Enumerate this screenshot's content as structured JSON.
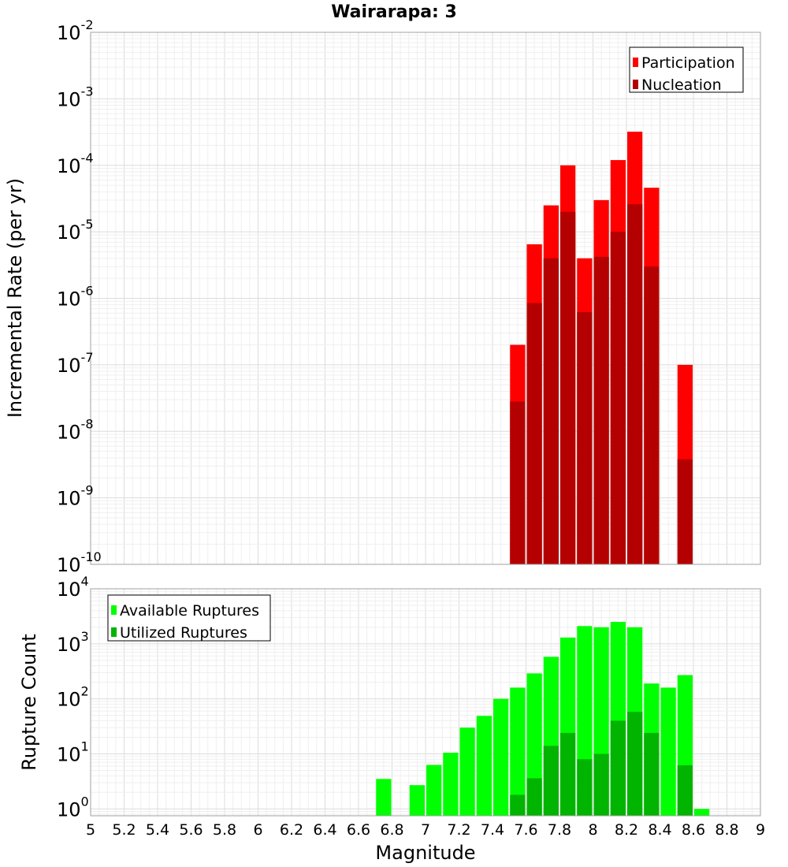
{
  "chart_data": [
    {
      "type": "bar",
      "panel": "top",
      "title": "Wairarapa: 3",
      "ylabel": "Incremental Rate (per yr)",
      "yscale": "log",
      "ylim": [
        1e-10,
        0.01
      ],
      "xlim": [
        5,
        9
      ],
      "bin_width": 0.1,
      "grid": true,
      "legend_position": "top-right",
      "y_ticks": [
        {
          "base": "10",
          "exp": "-10",
          "value": 1e-10
        },
        {
          "base": "10",
          "exp": "-9",
          "value": 1e-09
        },
        {
          "base": "10",
          "exp": "-8",
          "value": 1e-08
        },
        {
          "base": "10",
          "exp": "-7",
          "value": 1e-07
        },
        {
          "base": "10",
          "exp": "-6",
          "value": 1e-06
        },
        {
          "base": "10",
          "exp": "-5",
          "value": 1e-05
        },
        {
          "base": "10",
          "exp": "-4",
          "value": 0.0001
        },
        {
          "base": "10",
          "exp": "-3",
          "value": 0.001
        },
        {
          "base": "10",
          "exp": "-2",
          "value": 0.01
        }
      ],
      "x": [
        7.55,
        7.65,
        7.75,
        7.85,
        7.95,
        8.05,
        8.15,
        8.25,
        8.35,
        8.55
      ],
      "series": [
        {
          "name": "Participation",
          "color": "#ff0000",
          "values": [
            2e-07,
            6.5e-06,
            2.5e-05,
            0.0001,
            4e-06,
            3e-05,
            0.00012,
            0.00032,
            4.6e-05,
            1e-07
          ]
        },
        {
          "name": "Nucleation",
          "color": "#b40000",
          "values": [
            2.8e-08,
            8.5e-07,
            4e-06,
            2e-05,
            6.2e-07,
            4.2e-06,
            1e-05,
            2.6e-05,
            3e-06,
            3.8e-09
          ]
        }
      ]
    },
    {
      "type": "bar",
      "panel": "bottom",
      "xlabel": "Magnitude",
      "ylabel": "Rupture Count",
      "yscale": "log",
      "ylim": [
        0.75,
        10000
      ],
      "xlim": [
        5,
        9
      ],
      "bin_width": 0.1,
      "grid": true,
      "legend_position": "top-left",
      "x_ticks": [
        "5",
        "5.2",
        "5.4",
        "5.6",
        "5.8",
        "6",
        "6.2",
        "6.4",
        "6.6",
        "6.8",
        "7",
        "7.2",
        "7.4",
        "7.6",
        "7.8",
        "8",
        "8.2",
        "8.4",
        "8.6",
        "8.8",
        "9"
      ],
      "y_ticks": [
        {
          "base": "10",
          "exp": "0",
          "value": 1
        },
        {
          "base": "10",
          "exp": "1",
          "value": 10
        },
        {
          "base": "10",
          "exp": "2",
          "value": 100
        },
        {
          "base": "10",
          "exp": "3",
          "value": 1000
        },
        {
          "base": "10",
          "exp": "4",
          "value": 10000
        }
      ],
      "x": [
        6.75,
        6.95,
        7.05,
        7.15,
        7.25,
        7.35,
        7.45,
        7.55,
        7.65,
        7.75,
        7.85,
        7.95,
        8.05,
        8.15,
        8.25,
        8.35,
        8.45,
        8.55,
        8.65
      ],
      "series": [
        {
          "name": "Available Ruptures",
          "color": "#00ff00",
          "values": [
            3.5,
            2.7,
            6.3,
            10.5,
            30,
            49,
            100,
            160,
            290,
            580,
            1300,
            2100,
            2000,
            2500,
            2000,
            190,
            160,
            270,
            1
          ]
        },
        {
          "name": "Utilized Ruptures",
          "color": "#00b400",
          "values": [
            null,
            null,
            null,
            null,
            null,
            null,
            null,
            1.8,
            3.6,
            14,
            24,
            8,
            10,
            40,
            58,
            24,
            null,
            6.2,
            null
          ]
        }
      ]
    }
  ]
}
